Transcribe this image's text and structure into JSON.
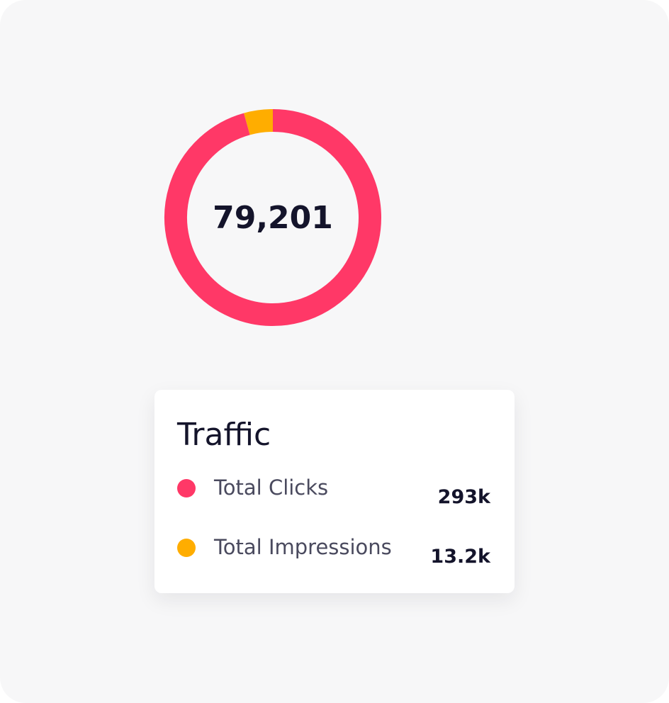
{
  "chart_data": {
    "type": "pie",
    "center_text": "79,201",
    "title": "Traffic",
    "categories": [
      "Total Clicks",
      "Total Impressions"
    ],
    "values": [
      293000,
      13200
    ],
    "value_labels": [
      "293k",
      "13.2k"
    ],
    "colors": [
      "#ff3867",
      "#ffad00"
    ]
  }
}
